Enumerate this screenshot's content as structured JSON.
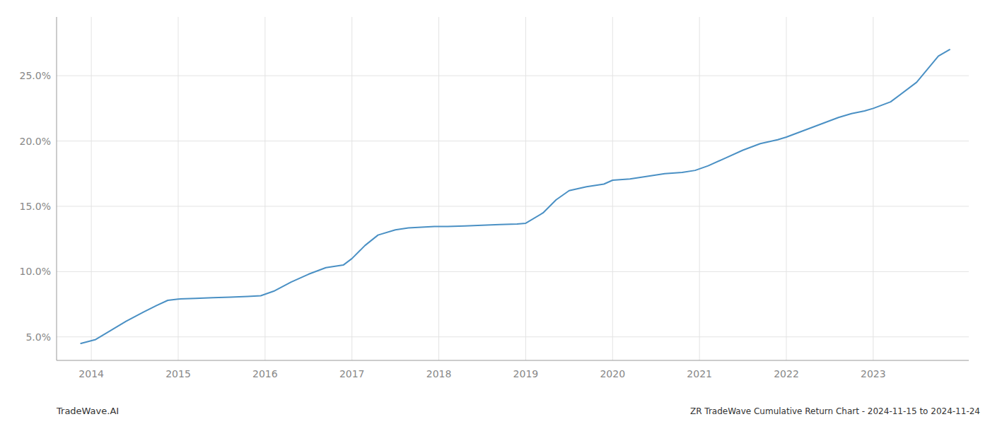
{
  "chart_data": {
    "type": "line",
    "title": "ZR TradeWave Cumulative Return Chart - 2024-11-15 to 2024-11-24",
    "annotations": [
      "TradeWave.AI"
    ],
    "color": "#4a90c4",
    "x": [
      2013.88,
      2014.05,
      2014.2,
      2014.4,
      2014.6,
      2014.75,
      2014.88,
      2015.0,
      2015.2,
      2015.4,
      2015.6,
      2015.8,
      2015.95,
      2016.1,
      2016.3,
      2016.5,
      2016.7,
      2016.9,
      2017.0,
      2017.15,
      2017.3,
      2017.5,
      2017.65,
      2017.8,
      2017.95,
      2018.1,
      2018.3,
      2018.5,
      2018.7,
      2018.9,
      2019.0,
      2019.2,
      2019.35,
      2019.5,
      2019.7,
      2019.9,
      2020.0,
      2020.2,
      2020.4,
      2020.6,
      2020.8,
      2020.95,
      2021.1,
      2021.3,
      2021.5,
      2021.7,
      2021.9,
      2022.0,
      2022.2,
      2022.4,
      2022.6,
      2022.75,
      2022.9,
      2023.0,
      2023.2,
      2023.5,
      2023.75,
      2023.88
    ],
    "values": [
      4.5,
      4.8,
      5.4,
      6.2,
      6.9,
      7.4,
      7.8,
      7.9,
      7.95,
      8.0,
      8.05,
      8.1,
      8.15,
      8.5,
      9.2,
      9.8,
      10.3,
      10.5,
      11.0,
      12.0,
      12.8,
      13.2,
      13.35,
      13.4,
      13.45,
      13.45,
      13.5,
      13.55,
      13.6,
      13.65,
      13.7,
      14.5,
      15.5,
      16.2,
      16.5,
      16.7,
      17.0,
      17.1,
      17.3,
      17.5,
      17.6,
      17.75,
      18.1,
      18.7,
      19.3,
      19.8,
      20.1,
      20.3,
      20.8,
      21.3,
      21.8,
      22.1,
      22.3,
      22.5,
      23.0,
      24.5,
      26.5,
      27.0
    ],
    "xlim": [
      2013.6,
      2024.1
    ],
    "ylim": [
      3.2,
      29.5
    ],
    "xticks": [
      2014,
      2015,
      2016,
      2017,
      2018,
      2019,
      2020,
      2021,
      2022,
      2023
    ],
    "yticks": [
      {
        "value": 5.0,
        "label": "5.0%"
      },
      {
        "value": 10.0,
        "label": "10.0%"
      },
      {
        "value": 15.0,
        "label": "15.0%"
      },
      {
        "value": 20.0,
        "label": "20.0%"
      },
      {
        "value": 25.0,
        "label": "25.0%"
      }
    ],
    "grid": true
  }
}
